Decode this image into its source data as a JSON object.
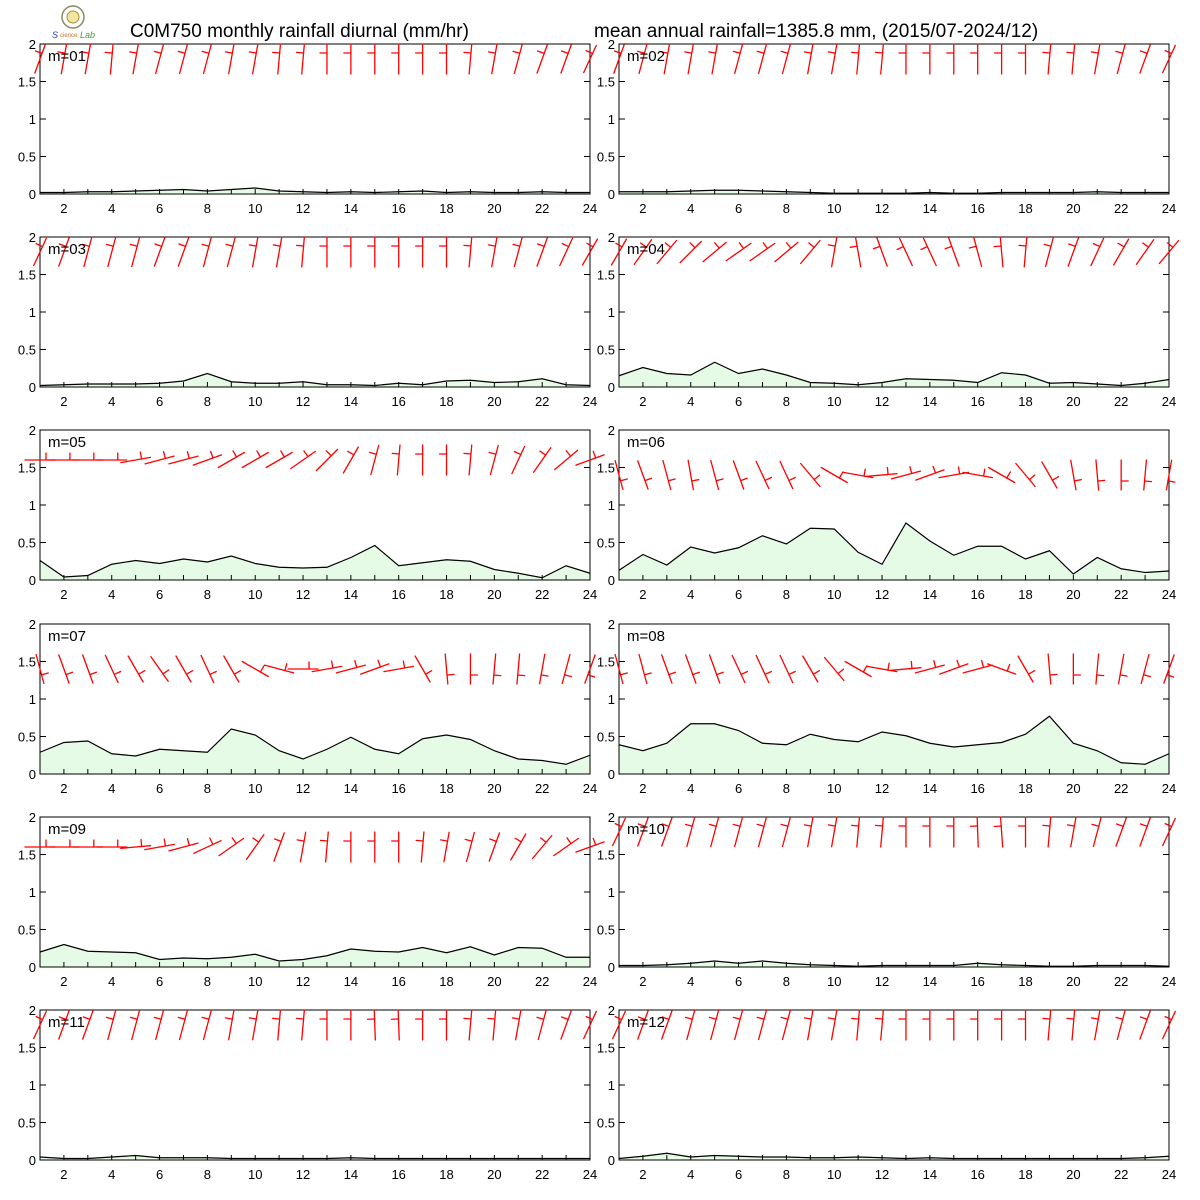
{
  "header": {
    "title_left": "C0M750 monthly rainfall diurnal (mm/hr)",
    "title_right": "mean annual rainfall=1385.8 mm, (2015/07-2024/12)",
    "logo_icon": "lab-logo-icon"
  },
  "colors": {
    "fill": "#e6fbe6",
    "line": "#000000",
    "barb": "#ff0000"
  },
  "chart_data": [
    {
      "type": "area",
      "label": "m=01",
      "x": [
        1,
        2,
        3,
        4,
        5,
        6,
        7,
        8,
        9,
        10,
        11,
        12,
        13,
        14,
        15,
        16,
        17,
        18,
        19,
        20,
        21,
        22,
        23,
        24
      ],
      "values": [
        0.02,
        0.02,
        0.03,
        0.03,
        0.04,
        0.05,
        0.06,
        0.04,
        0.06,
        0.08,
        0.04,
        0.03,
        0.02,
        0.03,
        0.02,
        0.03,
        0.04,
        0.02,
        0.03,
        0.02,
        0.02,
        0.03,
        0.02,
        0.02
      ],
      "wind_dir": [
        200,
        190,
        190,
        185,
        190,
        195,
        195,
        195,
        190,
        190,
        185,
        185,
        180,
        180,
        180,
        180,
        180,
        180,
        185,
        190,
        195,
        200,
        200,
        205
      ],
      "ylim": [
        0,
        2
      ],
      "yticks": [
        0,
        0.5,
        1,
        1.5,
        2
      ],
      "xticks": [
        2,
        4,
        6,
        8,
        10,
        12,
        14,
        16,
        18,
        20,
        22,
        24
      ],
      "barb_level": 1.8
    },
    {
      "type": "area",
      "label": "m=02",
      "x": [
        1,
        2,
        3,
        4,
        5,
        6,
        7,
        8,
        9,
        10,
        11,
        12,
        13,
        14,
        15,
        16,
        17,
        18,
        19,
        20,
        21,
        22,
        23,
        24
      ],
      "values": [
        0.03,
        0.03,
        0.03,
        0.04,
        0.05,
        0.05,
        0.04,
        0.03,
        0.02,
        0.01,
        0.01,
        0.01,
        0.01,
        0.02,
        0.01,
        0.01,
        0.02,
        0.02,
        0.02,
        0.02,
        0.03,
        0.02,
        0.02,
        0.02
      ],
      "wind_dir": [
        200,
        195,
        190,
        190,
        190,
        195,
        195,
        195,
        190,
        190,
        185,
        185,
        180,
        180,
        180,
        180,
        180,
        180,
        185,
        185,
        190,
        195,
        200,
        205
      ],
      "ylim": [
        0,
        2
      ],
      "yticks": [
        0,
        0.5,
        1,
        1.5,
        2
      ],
      "xticks": [
        2,
        4,
        6,
        8,
        10,
        12,
        14,
        16,
        18,
        20,
        22,
        24
      ],
      "barb_level": 1.8
    },
    {
      "type": "area",
      "label": "m=03",
      "x": [
        1,
        2,
        3,
        4,
        5,
        6,
        7,
        8,
        9,
        10,
        11,
        12,
        13,
        14,
        15,
        16,
        17,
        18,
        19,
        20,
        21,
        22,
        23,
        24
      ],
      "values": [
        0.02,
        0.03,
        0.04,
        0.04,
        0.04,
        0.05,
        0.08,
        0.18,
        0.07,
        0.05,
        0.05,
        0.07,
        0.03,
        0.03,
        0.02,
        0.05,
        0.03,
        0.08,
        0.09,
        0.06,
        0.07,
        0.11,
        0.03,
        0.02
      ],
      "wind_dir": [
        205,
        200,
        195,
        195,
        195,
        200,
        200,
        195,
        195,
        190,
        190,
        185,
        180,
        180,
        180,
        180,
        180,
        180,
        185,
        190,
        195,
        200,
        205,
        210
      ],
      "ylim": [
        0,
        2
      ],
      "yticks": [
        0,
        0.5,
        1,
        1.5,
        2
      ],
      "xticks": [
        2,
        4,
        6,
        8,
        10,
        12,
        14,
        16,
        18,
        20,
        22,
        24
      ],
      "barb_level": 1.8
    },
    {
      "type": "area",
      "label": "m=04",
      "x": [
        1,
        2,
        3,
        4,
        5,
        6,
        7,
        8,
        9,
        10,
        11,
        12,
        13,
        14,
        15,
        16,
        17,
        18,
        19,
        20,
        21,
        22,
        23,
        24
      ],
      "values": [
        0.15,
        0.26,
        0.18,
        0.16,
        0.33,
        0.18,
        0.24,
        0.16,
        0.06,
        0.05,
        0.03,
        0.06,
        0.11,
        0.1,
        0.09,
        0.06,
        0.19,
        0.16,
        0.05,
        0.06,
        0.04,
        0.02,
        0.05,
        0.1
      ],
      "wind_dir": [
        210,
        215,
        220,
        225,
        230,
        235,
        235,
        230,
        220,
        190,
        170,
        160,
        155,
        155,
        160,
        165,
        175,
        185,
        195,
        200,
        205,
        210,
        215,
        220
      ],
      "ylim": [
        0,
        2
      ],
      "yticks": [
        0,
        0.5,
        1,
        1.5,
        2
      ],
      "xticks": [
        2,
        4,
        6,
        8,
        10,
        12,
        14,
        16,
        18,
        20,
        22,
        24
      ],
      "barb_level": 1.8
    },
    {
      "type": "area",
      "label": "m=05",
      "x": [
        1,
        2,
        3,
        4,
        5,
        6,
        7,
        8,
        9,
        10,
        11,
        12,
        13,
        14,
        15,
        16,
        17,
        18,
        19,
        20,
        21,
        22,
        23,
        24
      ],
      "values": [
        0.26,
        0.04,
        0.06,
        0.21,
        0.26,
        0.22,
        0.28,
        0.24,
        0.32,
        0.22,
        0.17,
        0.16,
        0.17,
        0.3,
        0.46,
        0.19,
        0.23,
        0.27,
        0.25,
        0.14,
        0.09,
        0.03,
        0.19,
        0.09
      ],
      "wind_dir": [
        270,
        270,
        270,
        270,
        260,
        255,
        255,
        250,
        240,
        240,
        240,
        235,
        225,
        210,
        195,
        185,
        180,
        180,
        185,
        195,
        205,
        215,
        230,
        250
      ],
      "ylim": [
        0,
        2
      ],
      "yticks": [
        0,
        0.5,
        1,
        1.5,
        2
      ],
      "xticks": [
        2,
        4,
        6,
        8,
        10,
        12,
        14,
        16,
        18,
        20,
        22,
        24
      ],
      "barb_level": 1.6
    },
    {
      "type": "area",
      "label": "m=06",
      "x": [
        1,
        2,
        3,
        4,
        5,
        6,
        7,
        8,
        9,
        10,
        11,
        12,
        13,
        14,
        15,
        16,
        17,
        18,
        19,
        20,
        21,
        22,
        23,
        24
      ],
      "values": [
        0.13,
        0.34,
        0.2,
        0.44,
        0.36,
        0.43,
        0.59,
        0.48,
        0.69,
        0.68,
        0.37,
        0.21,
        0.76,
        0.52,
        0.33,
        0.45,
        0.45,
        0.28,
        0.39,
        0.08,
        0.3,
        0.15,
        0.1,
        0.12
      ],
      "wind_dir": [
        345,
        340,
        345,
        350,
        345,
        340,
        335,
        335,
        320,
        300,
        280,
        265,
        255,
        250,
        260,
        280,
        300,
        320,
        330,
        350,
        355,
        0,
        5,
        10
      ],
      "ylim": [
        0,
        2
      ],
      "yticks": [
        0,
        0.5,
        1,
        1.5,
        2
      ],
      "xticks": [
        2,
        4,
        6,
        8,
        10,
        12,
        14,
        16,
        18,
        20,
        22,
        24
      ],
      "barb_level": 1.4
    },
    {
      "type": "area",
      "label": "m=07",
      "x": [
        1,
        2,
        3,
        4,
        5,
        6,
        7,
        8,
        9,
        10,
        11,
        12,
        13,
        14,
        15,
        16,
        17,
        18,
        19,
        20,
        21,
        22,
        23,
        24
      ],
      "values": [
        0.29,
        0.42,
        0.44,
        0.27,
        0.24,
        0.33,
        0.31,
        0.29,
        0.6,
        0.52,
        0.31,
        0.2,
        0.33,
        0.49,
        0.33,
        0.27,
        0.47,
        0.52,
        0.46,
        0.31,
        0.2,
        0.18,
        0.13,
        0.25
      ],
      "wind_dir": [
        345,
        340,
        340,
        335,
        330,
        325,
        330,
        335,
        330,
        300,
        285,
        270,
        260,
        255,
        250,
        260,
        330,
        355,
        0,
        5,
        5,
        10,
        15,
        20
      ],
      "ylim": [
        0,
        2
      ],
      "yticks": [
        0,
        0.5,
        1,
        1.5,
        2
      ],
      "xticks": [
        2,
        4,
        6,
        8,
        10,
        12,
        14,
        16,
        18,
        20,
        22,
        24
      ],
      "barb_level": 1.4
    },
    {
      "type": "area",
      "label": "m=08",
      "x": [
        1,
        2,
        3,
        4,
        5,
        6,
        7,
        8,
        9,
        10,
        11,
        12,
        13,
        14,
        15,
        16,
        17,
        18,
        19,
        20,
        21,
        22,
        23,
        24
      ],
      "values": [
        0.39,
        0.31,
        0.41,
        0.67,
        0.67,
        0.58,
        0.41,
        0.39,
        0.53,
        0.46,
        0.43,
        0.56,
        0.51,
        0.41,
        0.36,
        0.39,
        0.42,
        0.53,
        0.77,
        0.41,
        0.31,
        0.15,
        0.13,
        0.27
      ],
      "wind_dir": [
        345,
        345,
        340,
        340,
        340,
        335,
        335,
        335,
        330,
        320,
        300,
        280,
        265,
        255,
        250,
        255,
        290,
        330,
        355,
        0,
        5,
        10,
        15,
        20
      ],
      "ylim": [
        0,
        2
      ],
      "yticks": [
        0,
        0.5,
        1,
        1.5,
        2
      ],
      "xticks": [
        2,
        4,
        6,
        8,
        10,
        12,
        14,
        16,
        18,
        20,
        22,
        24
      ],
      "barb_level": 1.4
    },
    {
      "type": "area",
      "label": "m=09",
      "x": [
        1,
        2,
        3,
        4,
        5,
        6,
        7,
        8,
        9,
        10,
        11,
        12,
        13,
        14,
        15,
        16,
        17,
        18,
        19,
        20,
        21,
        22,
        23,
        24
      ],
      "values": [
        0.2,
        0.3,
        0.21,
        0.2,
        0.19,
        0.1,
        0.12,
        0.11,
        0.13,
        0.17,
        0.08,
        0.1,
        0.15,
        0.24,
        0.21,
        0.2,
        0.26,
        0.19,
        0.27,
        0.16,
        0.26,
        0.25,
        0.13,
        0.13
      ],
      "wind_dir": [
        270,
        270,
        270,
        270,
        265,
        260,
        255,
        245,
        235,
        215,
        200,
        190,
        185,
        180,
        180,
        180,
        185,
        190,
        195,
        200,
        210,
        220,
        235,
        250
      ],
      "ylim": [
        0,
        2
      ],
      "yticks": [
        0,
        0.5,
        1,
        1.5,
        2
      ],
      "xticks": [
        2,
        4,
        6,
        8,
        10,
        12,
        14,
        16,
        18,
        20,
        22,
        24
      ],
      "barb_level": 1.6
    },
    {
      "type": "area",
      "label": "m=10",
      "x": [
        1,
        2,
        3,
        4,
        5,
        6,
        7,
        8,
        9,
        10,
        11,
        12,
        13,
        14,
        15,
        16,
        17,
        18,
        19,
        20,
        21,
        22,
        23,
        24
      ],
      "values": [
        0.02,
        0.02,
        0.03,
        0.05,
        0.08,
        0.05,
        0.08,
        0.05,
        0.03,
        0.02,
        0.01,
        0.02,
        0.02,
        0.02,
        0.02,
        0.05,
        0.03,
        0.02,
        0.01,
        0.01,
        0.02,
        0.02,
        0.02,
        0.01
      ],
      "wind_dir": [
        205,
        200,
        200,
        195,
        195,
        195,
        195,
        195,
        190,
        190,
        185,
        185,
        180,
        180,
        180,
        178,
        176,
        180,
        185,
        190,
        195,
        200,
        200,
        205
      ],
      "ylim": [
        0,
        2
      ],
      "yticks": [
        0,
        0.5,
        1,
        1.5,
        2
      ],
      "xticks": [
        2,
        4,
        6,
        8,
        10,
        12,
        14,
        16,
        18,
        20,
        22,
        24
      ],
      "barb_level": 1.8
    },
    {
      "type": "area",
      "label": "m=11",
      "x": [
        1,
        2,
        3,
        4,
        5,
        6,
        7,
        8,
        9,
        10,
        11,
        12,
        13,
        14,
        15,
        16,
        17,
        18,
        19,
        20,
        21,
        22,
        23,
        24
      ],
      "values": [
        0.04,
        0.02,
        0.02,
        0.04,
        0.06,
        0.03,
        0.03,
        0.03,
        0.02,
        0.02,
        0.02,
        0.02,
        0.02,
        0.03,
        0.02,
        0.02,
        0.02,
        0.02,
        0.02,
        0.02,
        0.02,
        0.02,
        0.02,
        0.02
      ],
      "wind_dir": [
        205,
        200,
        200,
        195,
        195,
        195,
        195,
        195,
        190,
        190,
        185,
        185,
        180,
        180,
        178,
        178,
        180,
        180,
        185,
        185,
        190,
        195,
        200,
        205
      ],
      "ylim": [
        0,
        2
      ],
      "yticks": [
        0,
        0.5,
        1,
        1.5,
        2
      ],
      "xticks": [
        2,
        4,
        6,
        8,
        10,
        12,
        14,
        16,
        18,
        20,
        22,
        24
      ],
      "barb_level": 1.8
    },
    {
      "type": "area",
      "label": "m=12",
      "x": [
        1,
        2,
        3,
        4,
        5,
        6,
        7,
        8,
        9,
        10,
        11,
        12,
        13,
        14,
        15,
        16,
        17,
        18,
        19,
        20,
        21,
        22,
        23,
        24
      ],
      "values": [
        0.02,
        0.05,
        0.09,
        0.04,
        0.06,
        0.05,
        0.04,
        0.04,
        0.03,
        0.03,
        0.04,
        0.03,
        0.02,
        0.03,
        0.02,
        0.02,
        0.02,
        0.02,
        0.02,
        0.02,
        0.02,
        0.02,
        0.03,
        0.05
      ],
      "wind_dir": [
        205,
        200,
        200,
        195,
        195,
        195,
        195,
        195,
        190,
        190,
        185,
        185,
        180,
        180,
        180,
        180,
        180,
        180,
        185,
        185,
        190,
        195,
        200,
        205
      ],
      "ylim": [
        0,
        2
      ],
      "yticks": [
        0,
        0.5,
        1,
        1.5,
        2
      ],
      "xticks": [
        2,
        4,
        6,
        8,
        10,
        12,
        14,
        16,
        18,
        20,
        22,
        24
      ],
      "barb_level": 1.8
    }
  ]
}
